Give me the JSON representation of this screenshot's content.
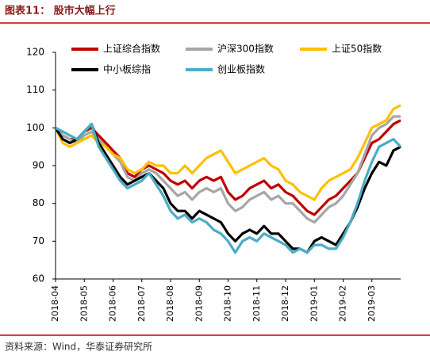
{
  "title": "图表11：  股市大幅上行",
  "source": "资料来源：Wind，华泰证券研究所",
  "chart_data": {
    "type": "line",
    "categories": [
      "2018-04",
      null,
      null,
      null,
      "2018-05",
      null,
      null,
      null,
      "2018-06",
      null,
      null,
      null,
      "2018-07",
      null,
      null,
      null,
      "2018-08",
      null,
      null,
      null,
      "2018-09",
      null,
      null,
      null,
      "2018-10",
      null,
      null,
      null,
      "2018-11",
      null,
      null,
      null,
      "2018-12",
      null,
      null,
      null,
      "2019-01",
      null,
      null,
      null,
      "2019-02",
      null,
      null,
      null,
      "2019-03",
      null,
      null,
      null,
      null
    ],
    "series": [
      {
        "name": "上证综合指数",
        "color": "#c00000",
        "values": [
          100,
          98,
          97,
          97,
          99,
          100,
          98,
          96,
          94,
          92,
          88,
          87,
          89,
          90,
          89,
          88,
          86,
          85,
          86,
          84,
          86,
          87,
          86,
          87,
          83,
          81,
          82,
          84,
          85,
          86,
          84,
          85,
          83,
          82,
          80,
          78,
          77,
          79,
          81,
          82,
          84,
          86,
          88,
          92,
          96,
          97,
          99,
          101,
          102
        ]
      },
      {
        "name": "沪深300指数",
        "color": "#a6a6a6",
        "values": [
          100,
          98,
          97,
          96,
          98,
          99,
          97,
          95,
          93,
          91,
          87,
          86,
          88,
          89,
          88,
          86,
          84,
          82,
          83,
          81,
          83,
          84,
          83,
          84,
          80,
          78,
          79,
          81,
          82,
          83,
          81,
          82,
          80,
          80,
          78,
          76,
          75,
          77,
          79,
          80,
          82,
          85,
          88,
          93,
          98,
          100,
          101,
          103,
          103
        ]
      },
      {
        "name": "上证50指数",
        "color": "#ffc000",
        "values": [
          100,
          96,
          95,
          96,
          97,
          98,
          96,
          95,
          93,
          92,
          89,
          88,
          89,
          91,
          90,
          90,
          88,
          88,
          90,
          88,
          90,
          92,
          93,
          94,
          91,
          88,
          89,
          90,
          91,
          92,
          90,
          89,
          86,
          85,
          83,
          82,
          81,
          84,
          86,
          87,
          88,
          89,
          92,
          96,
          100,
          101,
          102,
          105,
          106
        ]
      },
      {
        "name": "中小板综指",
        "color": "#000000",
        "values": [
          100,
          97,
          96,
          97,
          99,
          101,
          96,
          93,
          90,
          87,
          85,
          86,
          87,
          88,
          86,
          84,
          80,
          78,
          78,
          76,
          78,
          77,
          76,
          75,
          72,
          70,
          72,
          73,
          72,
          74,
          72,
          72,
          70,
          68,
          68,
          67,
          70,
          71,
          70,
          69,
          72,
          75,
          79,
          84,
          88,
          91,
          90,
          94,
          95
        ]
      },
      {
        "name": "创业板指数",
        "color": "#4bacc6",
        "values": [
          100,
          99,
          98,
          97,
          99,
          101,
          95,
          92,
          89,
          86,
          84,
          85,
          86,
          88,
          85,
          82,
          78,
          76,
          77,
          75,
          76,
          75,
          73,
          72,
          70,
          67,
          70,
          71,
          70,
          72,
          71,
          70,
          69,
          67,
          68,
          67,
          69,
          69,
          68,
          68,
          71,
          75,
          80,
          86,
          91,
          95,
          96,
          97,
          95
        ]
      }
    ],
    "ylim": [
      60,
      120
    ],
    "yticks": [
      60,
      70,
      80,
      90,
      100,
      110,
      120
    ]
  }
}
